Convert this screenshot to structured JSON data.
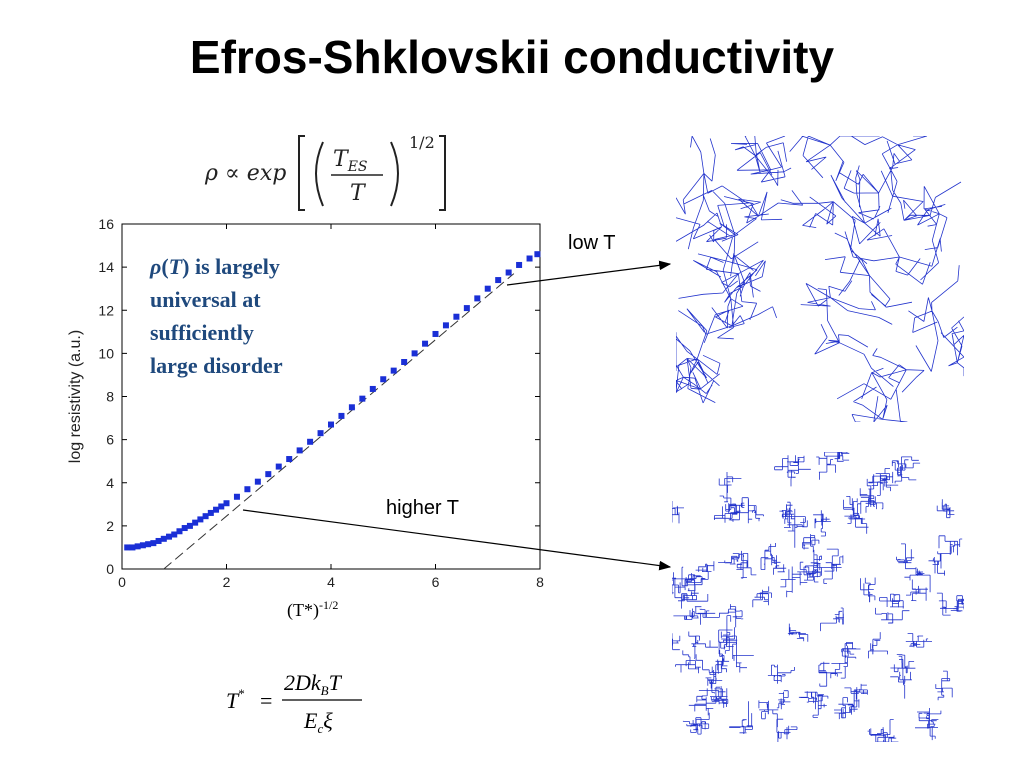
{
  "slide": {
    "title": "Efros-Shklovskii conductivity",
    "formula": {
      "lhs": "ρ ∝ exp",
      "numerator": "T",
      "numerator_sub": "ES",
      "denominator": "T",
      "exponent": "1/2"
    },
    "annotation": {
      "rho": "ρ",
      "open": "(",
      "T": "T",
      "close_rest": ") is largely",
      "line2": "universal at",
      "line3": "sufficiently",
      "line4": "large disorder"
    },
    "xlabel_base": "(T*)",
    "xlabel_exp": "-1/2",
    "low_label": "low T",
    "high_label": "higher T",
    "tstar_eq": {
      "lhs": "T",
      "lhs_sup": "*",
      "equals": "=",
      "numerator": "2Dk",
      "num_sub": "B",
      "num_tail": "T",
      "denominator": "E",
      "den_sub": "c",
      "den_tail": "ξ"
    }
  },
  "chart_data": {
    "type": "scatter",
    "ylabel": "log resistivity  (a.u.)",
    "xlim": [
      0,
      8
    ],
    "ylim": [
      0,
      16
    ],
    "x_ticks": [
      0,
      2,
      4,
      6,
      8
    ],
    "y_ticks": [
      0,
      2,
      4,
      6,
      8,
      10,
      12,
      14,
      16
    ],
    "grid": false,
    "series": [
      {
        "color": "#1a2fd6",
        "marker": "square",
        "x": [
          0.1,
          0.2,
          0.3,
          0.4,
          0.5,
          0.6,
          0.7,
          0.8,
          0.9,
          1.0,
          1.1,
          1.2,
          1.3,
          1.4,
          1.5,
          1.6,
          1.7,
          1.8,
          1.9,
          2.0,
          2.2,
          2.4,
          2.6,
          2.8,
          3.0,
          3.2,
          3.4,
          3.6,
          3.8,
          4.0,
          4.2,
          4.4,
          4.6,
          4.8,
          5.0,
          5.2,
          5.4,
          5.6,
          5.8,
          6.0,
          6.2,
          6.4,
          6.6,
          6.8,
          7.0,
          7.2,
          7.4,
          7.6,
          7.8,
          7.95
        ],
        "y": [
          1.0,
          1.0,
          1.05,
          1.1,
          1.15,
          1.2,
          1.3,
          1.4,
          1.5,
          1.6,
          1.75,
          1.9,
          2.0,
          2.15,
          2.3,
          2.45,
          2.6,
          2.75,
          2.9,
          3.05,
          3.35,
          3.7,
          4.05,
          4.4,
          4.75,
          5.1,
          5.5,
          5.9,
          6.3,
          6.7,
          7.1,
          7.5,
          7.9,
          8.35,
          8.8,
          9.2,
          9.6,
          10.0,
          10.45,
          10.9,
          11.3,
          11.7,
          12.1,
          12.55,
          13.0,
          13.4,
          13.75,
          14.1,
          14.4,
          14.6
        ]
      }
    ],
    "reference_line": {
      "style": "dashed",
      "x": [
        0.8,
        7.5
      ],
      "y": [
        0.0,
        13.7
      ]
    }
  },
  "images": {
    "low_t": {
      "description_icon": "sparse-network-graph",
      "color": "#2233cc"
    },
    "high_t": {
      "description_icon": "dense-network-graph",
      "color": "#2233cc"
    }
  }
}
